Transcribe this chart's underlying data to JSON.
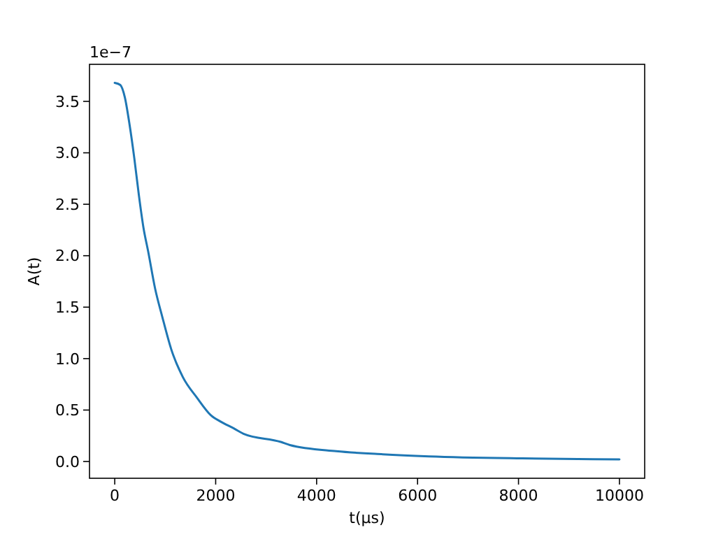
{
  "chart_data": {
    "type": "line",
    "xlabel": "t(μs)",
    "ylabel": "A(t)",
    "annotations": [
      "1e−7"
    ],
    "x": [
      0,
      110,
      200,
      295,
      387,
      478,
      570,
      663,
      800,
      940,
      1120,
      1350,
      1630,
      1905,
      2090,
      2365,
      2550,
      3290,
      3470,
      4390,
      5310,
      6230,
      8070,
      10000
    ],
    "series": [
      {
        "color": "#1f77b4",
        "values": [
          3.68,
          3.66,
          3.54,
          3.27,
          2.95,
          2.59,
          2.27,
          2.04,
          1.68,
          1.41,
          1.09,
          0.82,
          0.62,
          0.45,
          0.39,
          0.32,
          0.27,
          0.19,
          0.16,
          0.1,
          0.07,
          0.05,
          0.03,
          0.02
        ]
      }
    ],
    "xlim": [
      -500,
      10500
    ],
    "xticks": [
      0,
      2000,
      4000,
      6000,
      8000,
      10000
    ],
    "ylim": [
      -0.163,
      3.86
    ],
    "yticks": [
      {
        "value": 0,
        "label": "0.0"
      },
      {
        "value": 0.5,
        "label": "0.5"
      },
      {
        "value": 1,
        "label": "1.0"
      },
      {
        "value": 1.5,
        "label": "1.5"
      },
      {
        "value": 2,
        "label": "2.0"
      },
      {
        "value": 2.5,
        "label": "2.5"
      },
      {
        "value": 3,
        "label": "3.0"
      },
      {
        "value": 3.5,
        "label": "3.5"
      }
    ],
    "grid": false,
    "marker": "none",
    "line_style": "solid"
  }
}
